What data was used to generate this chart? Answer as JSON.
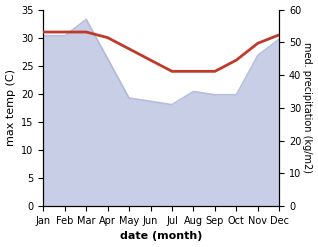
{
  "months": [
    "Jan",
    "Feb",
    "Mar",
    "Apr",
    "May",
    "Jun",
    "Jul",
    "Aug",
    "Sep",
    "Oct",
    "Nov",
    "Dec"
  ],
  "temperature": [
    31.0,
    31.0,
    31.0,
    30.0,
    28.0,
    26.0,
    24.0,
    24.0,
    24.0,
    26.0,
    29.0,
    30.5
  ],
  "precipitation": [
    52,
    52,
    57,
    45,
    33,
    32,
    31,
    35,
    34,
    34,
    46,
    51
  ],
  "temp_color": "#c0392b",
  "precip_color": "#aab4d8",
  "precip_fill_alpha": 0.65,
  "left_ylim": [
    0,
    35
  ],
  "right_ylim": [
    0,
    60
  ],
  "left_yticks": [
    0,
    5,
    10,
    15,
    20,
    25,
    30,
    35
  ],
  "right_yticks": [
    0,
    10,
    20,
    30,
    40,
    50,
    60
  ],
  "xlabel": "date (month)",
  "ylabel_left": "max temp (C)",
  "ylabel_right": "med. precipitation (kg/m2)",
  "bg_color": "#ffffff",
  "temp_linewidth": 2.0,
  "precip_linewidth": 1.2
}
